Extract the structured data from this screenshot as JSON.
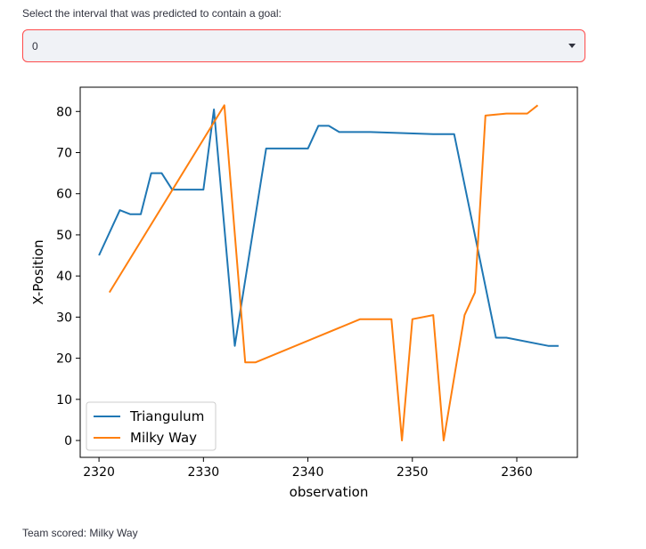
{
  "selector": {
    "label": "Select the interval that was predicted to contain a goal:",
    "value": "0"
  },
  "result": {
    "text": "Team scored: Milky Way"
  },
  "chart_data": {
    "type": "line",
    "xlabel": "observation",
    "ylabel": "X-Position",
    "xlim": [
      2318.2,
      2365.8
    ],
    "ylim": [
      -4.1,
      85.9
    ],
    "xticks": [
      2320,
      2330,
      2340,
      2350,
      2360
    ],
    "yticks": [
      0,
      10,
      20,
      30,
      40,
      50,
      60,
      70,
      80
    ],
    "legend_position": "lower-left",
    "series": [
      {
        "name": "Triangulum",
        "color": "#1f77b4",
        "points": [
          [
            2320,
            45
          ],
          [
            2322,
            56
          ],
          [
            2323,
            55
          ],
          [
            2324,
            55
          ],
          [
            2325,
            65
          ],
          [
            2326,
            65
          ],
          [
            2327,
            61
          ],
          [
            2328,
            61
          ],
          [
            2330,
            61
          ],
          [
            2331,
            80.5
          ],
          [
            2333,
            23
          ],
          [
            2336,
            71
          ],
          [
            2340,
            71
          ],
          [
            2341,
            76.5
          ],
          [
            2342,
            76.5
          ],
          [
            2343,
            75
          ],
          [
            2346,
            75
          ],
          [
            2352,
            74.5
          ],
          [
            2354,
            74.5
          ],
          [
            2358,
            25
          ],
          [
            2359,
            25
          ],
          [
            2363,
            23
          ],
          [
            2364,
            23
          ]
        ]
      },
      {
        "name": "Milky Way",
        "color": "#ff7f0e",
        "points": [
          [
            2321,
            36
          ],
          [
            2332,
            81.5
          ],
          [
            2334,
            19
          ],
          [
            2335,
            19
          ],
          [
            2345,
            29.5
          ],
          [
            2348,
            29.5
          ],
          [
            2349,
            0
          ],
          [
            2350,
            29.5
          ],
          [
            2352,
            30.5
          ],
          [
            2353,
            0
          ],
          [
            2355,
            30.5
          ],
          [
            2356,
            36
          ],
          [
            2357,
            79
          ],
          [
            2359,
            79.5
          ],
          [
            2361,
            79.5
          ],
          [
            2362,
            81.5
          ]
        ]
      }
    ]
  }
}
